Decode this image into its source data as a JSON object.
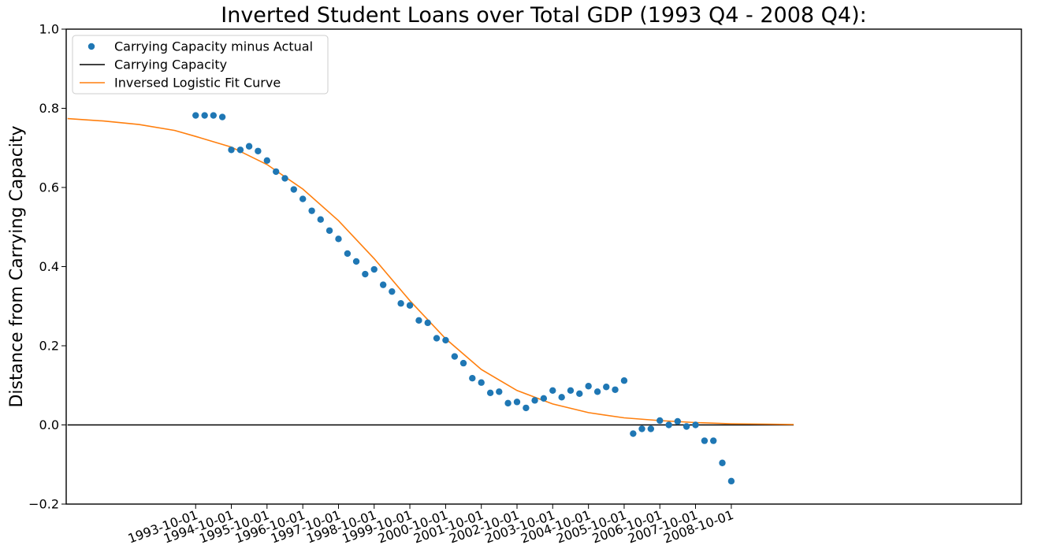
{
  "chart_data": {
    "type": "scatter",
    "title": "Inverted Student Loans over Total GDP (1993 Q4 - 2008 Q4):",
    "xlabel": "",
    "ylabel": "Distance from Carrying Capacity",
    "ylim": [
      -0.2,
      1.0
    ],
    "yticks": [
      "−0.2",
      "0.0",
      "0.2",
      "0.4",
      "0.6",
      "0.8",
      "1.0"
    ],
    "xlim": [
      -14.5,
      92.5
    ],
    "xtick_labels": [
      "1993-10-01",
      "1994-10-01",
      "1995-10-01",
      "1996-10-01",
      "1997-10-01",
      "1998-10-01",
      "1999-10-01",
      "2000-10-01",
      "2001-10-01",
      "2002-10-01",
      "2003-10-01",
      "2004-10-01",
      "2005-10-01",
      "2006-10-01",
      "2007-10-01",
      "2008-10-01"
    ],
    "legend_position": "top-left",
    "grid": false,
    "series": [
      {
        "name": "Carrying Capacity minus Actual",
        "kind": "scatter",
        "color": "#1f77b4",
        "x": [
          "1993-10-01",
          "1994-01-01",
          "1994-04-01",
          "1994-07-01",
          "1994-10-01",
          "1995-01-01",
          "1995-04-01",
          "1995-07-01",
          "1995-10-01",
          "1996-01-01",
          "1996-04-01",
          "1996-07-01",
          "1996-10-01",
          "1997-01-01",
          "1997-04-01",
          "1997-07-01",
          "1997-10-01",
          "1998-01-01",
          "1998-04-01",
          "1998-07-01",
          "1998-10-01",
          "1999-01-01",
          "1999-04-01",
          "1999-07-01",
          "1999-10-01",
          "2000-01-01",
          "2000-04-01",
          "2000-07-01",
          "2000-10-01",
          "2001-01-01",
          "2001-04-01",
          "2001-07-01",
          "2001-10-01",
          "2002-01-01",
          "2002-04-01",
          "2002-07-01",
          "2002-10-01",
          "2003-01-01",
          "2003-04-01",
          "2003-07-01",
          "2003-10-01",
          "2004-01-01",
          "2004-04-01",
          "2004-07-01",
          "2004-10-01",
          "2005-01-01",
          "2005-04-01",
          "2005-07-01",
          "2005-10-01",
          "2006-01-01",
          "2006-04-01",
          "2006-07-01",
          "2006-10-01",
          "2007-01-01",
          "2007-04-01",
          "2007-07-01",
          "2007-10-01",
          "2008-01-01",
          "2008-04-01",
          "2008-07-01",
          "2008-10-01"
        ],
        "y": [
          0.782,
          0.782,
          0.782,
          0.778,
          0.695,
          0.695,
          0.704,
          0.692,
          0.668,
          0.64,
          0.623,
          0.595,
          0.571,
          0.541,
          0.519,
          0.491,
          0.47,
          0.433,
          0.413,
          0.381,
          0.393,
          0.354,
          0.337,
          0.307,
          0.302,
          0.264,
          0.258,
          0.219,
          0.214,
          0.173,
          0.156,
          0.118,
          0.107,
          0.081,
          0.084,
          0.055,
          0.058,
          0.043,
          0.062,
          0.067,
          0.087,
          0.07,
          0.087,
          0.079,
          0.098,
          0.084,
          0.096,
          0.089,
          0.112,
          -0.022,
          -0.01,
          -0.01,
          0.011,
          0.0,
          0.009,
          -0.004,
          0.0,
          -0.04,
          -0.04,
          -0.096,
          -0.142
        ]
      },
      {
        "name": "Carrying Capacity",
        "kind": "line",
        "color": "#000000",
        "x_range": [
          "1990-03-01",
          "2010-07-01"
        ],
        "y": 0.0
      },
      {
        "name": "Inversed Logistic Fit Curve",
        "kind": "line",
        "color": "#ff7f0e",
        "x": [
          "1990-03-01",
          "1991-03-01",
          "1992-03-01",
          "1993-03-01",
          "1993-10-01",
          "1994-10-01",
          "1995-10-01",
          "1996-10-01",
          "1997-10-01",
          "1998-10-01",
          "1999-10-01",
          "2000-10-01",
          "2001-10-01",
          "2002-10-01",
          "2003-10-01",
          "2004-10-01",
          "2005-10-01",
          "2006-10-01",
          "2007-10-01",
          "2008-10-01",
          "2009-10-01",
          "2010-07-01"
        ],
        "y": [
          0.774,
          0.768,
          0.759,
          0.744,
          0.729,
          0.702,
          0.658,
          0.596,
          0.516,
          0.42,
          0.314,
          0.218,
          0.14,
          0.087,
          0.053,
          0.031,
          0.018,
          0.011,
          0.006,
          0.003,
          0.002,
          0.001
        ]
      }
    ]
  }
}
